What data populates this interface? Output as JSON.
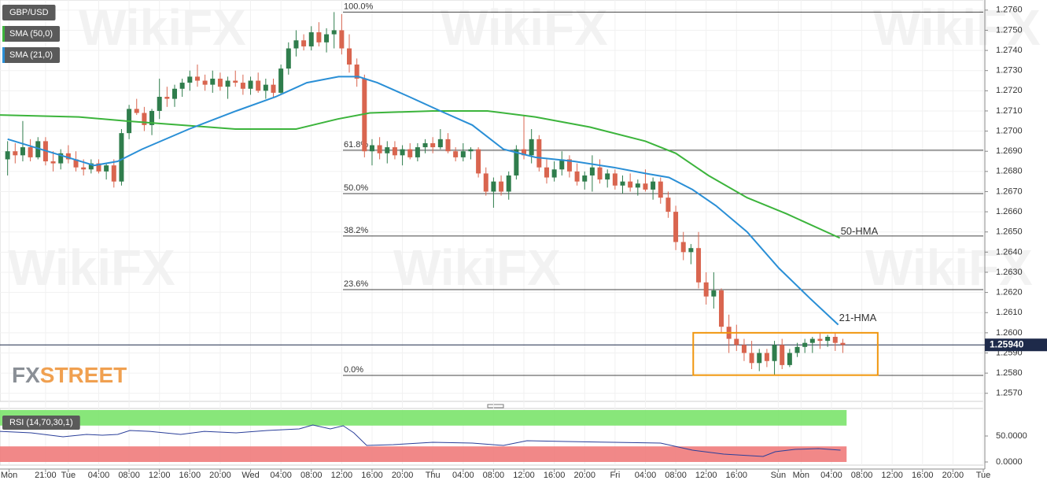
{
  "chart_data": {
    "type": "candlestick",
    "title": "GBP/USD",
    "indicators": [
      {
        "name": "SMA (50,0)",
        "color": "#3cb43c"
      },
      {
        "name": "SMA (21,0)",
        "color": "#2a8fd6"
      }
    ],
    "up_color": "#2f7d4c",
    "down_color": "#d9654f",
    "open": [
      1.2686,
      1.269,
      1.2688,
      1.2692,
      1.2687,
      1.2695,
      1.2685,
      1.2684,
      1.2689,
      1.2686,
      1.2682,
      1.2681,
      1.2684,
      1.268,
      1.2683,
      1.2675,
      1.2699,
      1.2711,
      1.2709,
      1.2703,
      1.271,
      1.2717,
      1.2716,
      1.2721,
      1.2724,
      1.2727,
      1.2725,
      1.2723,
      1.2726,
      1.2722,
      1.2725,
      1.2724,
      1.2721,
      1.2725,
      1.272,
      1.2723,
      1.2719,
      1.2731,
      1.2741,
      1.2745,
      1.2742,
      1.2749,
      1.2744,
      1.2748,
      1.275,
      1.2741,
      1.2733,
      1.2726,
      1.269,
      1.2693,
      1.2689,
      1.2692,
      1.2688,
      1.2691,
      1.2687,
      1.2692,
      1.2694,
      1.2692,
      1.2696,
      1.269,
      1.2687,
      1.269,
      1.2691,
      1.2679,
      1.267,
      1.2675,
      1.267,
      1.2678,
      1.2691,
      1.2688,
      1.2696,
      1.2682,
      1.2677,
      1.2681,
      1.2686,
      1.268,
      1.2675,
      1.2678,
      1.2682,
      1.2676,
      1.2679,
      1.2673,
      1.2675,
      1.2672,
      1.2674,
      1.2671,
      1.2675,
      1.2667,
      1.266,
      1.2645,
      1.264,
      1.2642,
      1.2625,
      1.2618,
      1.2621,
      1.2603,
      1.2597,
      1.2594,
      1.259,
      1.2585,
      1.259,
      1.2586,
      1.2594,
      1.2584,
      1.259,
      1.2593,
      1.2595,
      1.2597,
      1.2596,
      1.2598,
      1.2595
    ],
    "high": [
      1.2695,
      1.2694,
      1.2705,
      1.2696,
      1.2697,
      1.2697,
      1.269,
      1.2691,
      1.2693,
      1.269,
      1.2686,
      1.2686,
      1.2686,
      1.2684,
      1.2686,
      1.2701,
      1.2713,
      1.2716,
      1.2712,
      1.2711,
      1.2726,
      1.2722,
      1.2723,
      1.2726,
      1.273,
      1.2733,
      1.2728,
      1.273,
      1.2729,
      1.2727,
      1.273,
      1.2728,
      1.2727,
      1.2729,
      1.2726,
      1.2726,
      1.2733,
      1.2744,
      1.275,
      1.2748,
      1.2752,
      1.2754,
      1.2751,
      1.2759,
      1.2758,
      1.2748,
      1.2736,
      1.2728,
      1.2696,
      1.2697,
      1.2695,
      1.2695,
      1.2693,
      1.2694,
      1.2694,
      1.2696,
      1.2697,
      1.2701,
      1.2699,
      1.2692,
      1.2694,
      1.2692,
      1.2692,
      1.2682,
      1.2677,
      1.2678,
      1.268,
      1.2693,
      1.2708,
      1.2701,
      1.2698,
      1.2686,
      1.2685,
      1.269,
      1.2688,
      1.2684,
      1.268,
      1.2688,
      1.2686,
      1.2681,
      1.2681,
      1.2678,
      1.2679,
      1.2676,
      1.2681,
      1.2677,
      1.2677,
      1.267,
      1.2663,
      1.265,
      1.2644,
      1.265,
      1.263,
      1.263,
      1.2622,
      1.2609,
      1.2604,
      1.2597,
      1.2596,
      1.2592,
      1.2592,
      1.2596,
      1.2597,
      1.2592,
      1.2595,
      1.2597,
      1.2598,
      1.26,
      1.2599,
      1.26,
      1.2597
    ],
    "low": [
      1.2678,
      1.2684,
      1.2685,
      1.2685,
      1.2686,
      1.2683,
      1.268,
      1.2681,
      1.2684,
      1.268,
      1.2678,
      1.2679,
      1.2679,
      1.2676,
      1.2672,
      1.2673,
      1.2696,
      1.2708,
      1.27,
      1.2698,
      1.2706,
      1.2712,
      1.2712,
      1.2717,
      1.272,
      1.2722,
      1.272,
      1.2719,
      1.272,
      1.2716,
      1.2722,
      1.2718,
      1.2718,
      1.2719,
      1.2716,
      1.2717,
      1.2718,
      1.2728,
      1.2737,
      1.274,
      1.274,
      1.2742,
      1.2739,
      1.2741,
      1.2738,
      1.2729,
      1.2722,
      1.2687,
      1.2683,
      1.2686,
      1.2684,
      1.2686,
      1.2683,
      1.2686,
      1.2685,
      1.2689,
      1.2689,
      1.2691,
      1.2689,
      1.2685,
      1.2685,
      1.2686,
      1.2677,
      1.2668,
      1.2662,
      1.2668,
      1.2666,
      1.2676,
      1.2686,
      1.2684,
      1.268,
      1.2674,
      1.2675,
      1.2678,
      1.2677,
      1.2673,
      1.2671,
      1.267,
      1.2674,
      1.2672,
      1.2671,
      1.2669,
      1.267,
      1.2668,
      1.267,
      1.2666,
      1.2664,
      1.2657,
      1.2641,
      1.2636,
      1.2634,
      1.2622,
      1.2614,
      1.2612,
      1.26,
      1.259,
      1.2591,
      1.2586,
      1.2582,
      1.2581,
      1.2583,
      1.2579,
      1.2582,
      1.2583,
      1.2588,
      1.259,
      1.259,
      1.2592,
      1.2593,
      1.2591,
      1.259
    ],
    "close": [
      1.269,
      1.2688,
      1.2692,
      1.2687,
      1.2695,
      1.2685,
      1.2684,
      1.2689,
      1.2686,
      1.2682,
      1.2681,
      1.2684,
      1.268,
      1.2683,
      1.2675,
      1.2699,
      1.2711,
      1.2709,
      1.2703,
      1.271,
      1.2717,
      1.2716,
      1.2721,
      1.2724,
      1.2727,
      1.2725,
      1.2723,
      1.2726,
      1.2722,
      1.2725,
      1.2724,
      1.2721,
      1.2725,
      1.272,
      1.2723,
      1.2719,
      1.2731,
      1.2741,
      1.2745,
      1.2742,
      1.2749,
      1.2744,
      1.2748,
      1.275,
      1.2741,
      1.2733,
      1.2726,
      1.269,
      1.2693,
      1.2689,
      1.2692,
      1.2688,
      1.2691,
      1.2687,
      1.2692,
      1.2694,
      1.2692,
      1.2696,
      1.269,
      1.2687,
      1.269,
      1.2691,
      1.2679,
      1.267,
      1.2675,
      1.267,
      1.2678,
      1.2691,
      1.2688,
      1.2696,
      1.2682,
      1.2677,
      1.2681,
      1.2686,
      1.268,
      1.2675,
      1.2678,
      1.2682,
      1.2676,
      1.2679,
      1.2673,
      1.2675,
      1.2672,
      1.2674,
      1.2671,
      1.2675,
      1.2667,
      1.266,
      1.2645,
      1.264,
      1.2642,
      1.2625,
      1.2618,
      1.2621,
      1.2603,
      1.2597,
      1.2594,
      1.259,
      1.2585,
      1.259,
      1.2586,
      1.2594,
      1.2584,
      1.259,
      1.2593,
      1.2595,
      1.2597,
      1.2596,
      1.2598,
      1.2595,
      1.2594
    ],
    "series": [
      {
        "name": "50-HMA",
        "color": "#3cb43c",
        "x": [
          -1,
          9.4,
          15.6,
          22.8,
          30,
          38,
          43.5,
          47.7,
          56,
          63.2,
          69.5,
          76.7,
          84,
          88,
          92.3,
          97.4,
          102.6,
          109.6
        ],
        "values": [
          1.2708,
          1.2707,
          1.2705,
          1.2703,
          1.2701,
          1.2701,
          1.2706,
          1.2709,
          1.271,
          1.271,
          1.2707,
          1.2702,
          1.2695,
          1.2689,
          1.2678,
          1.2667,
          1.2659,
          1.2647
        ]
      },
      {
        "name": "21-HMA",
        "color": "#2a8fd6",
        "x": [
          0,
          11.4,
          14.5,
          17.7,
          23.9,
          30.1,
          35.3,
          39.4,
          43.6,
          46.2,
          48.7,
          52.9,
          57,
          61.2,
          65.3,
          69.5,
          74.6,
          79.8,
          84,
          87.1,
          90.2,
          93.3,
          97.4,
          101.6,
          105.7,
          109.4
        ],
        "values": [
          1.2696,
          1.2683,
          1.2685,
          1.2691,
          1.2701,
          1.271,
          1.2717,
          1.2724,
          1.2727,
          1.2727,
          1.2724,
          1.2717,
          1.271,
          1.2703,
          1.2691,
          1.2687,
          1.2685,
          1.2682,
          1.2679,
          1.2677,
          1.2671,
          1.2663,
          1.265,
          1.2632,
          1.2617,
          1.2604
        ]
      }
    ],
    "xlim": [
      -1,
      128.5
    ],
    "xticks": [
      {
        "value": 0.2,
        "label": "Mon"
      },
      {
        "value": 5,
        "label": "21:00"
      },
      {
        "value": 8,
        "label": "Tue"
      },
      {
        "value": 12,
        "label": "04:00"
      },
      {
        "value": 16,
        "label": "08:00"
      },
      {
        "value": 20,
        "label": "12:00"
      },
      {
        "value": 24,
        "label": "16:00"
      },
      {
        "value": 28,
        "label": "20:00"
      },
      {
        "value": 32,
        "label": "Wed"
      },
      {
        "value": 36,
        "label": "04:00"
      },
      {
        "value": 40,
        "label": "08:00"
      },
      {
        "value": 44,
        "label": "12:00"
      },
      {
        "value": 48,
        "label": "16:00"
      },
      {
        "value": 52,
        "label": "20:00"
      },
      {
        "value": 56,
        "label": "Thu"
      },
      {
        "value": 60,
        "label": "04:00"
      },
      {
        "value": 64,
        "label": "08:00"
      },
      {
        "value": 68,
        "label": "12:00"
      },
      {
        "value": 72,
        "label": "16:00"
      },
      {
        "value": 76,
        "label": "20:00"
      },
      {
        "value": 80,
        "label": "Fri"
      },
      {
        "value": 84,
        "label": "04:00"
      },
      {
        "value": 88,
        "label": "08:00"
      },
      {
        "value": 92,
        "label": "12:00"
      },
      {
        "value": 96,
        "label": "16:00"
      },
      {
        "value": 101.5,
        "label": "Sun"
      },
      {
        "value": 104.5,
        "label": "Mon"
      },
      {
        "value": 108.5,
        "label": "04:00"
      },
      {
        "value": 112.5,
        "label": "08:00"
      },
      {
        "value": 116.5,
        "label": "12:00"
      },
      {
        "value": 120.5,
        "label": "16:00"
      },
      {
        "value": 124.5,
        "label": "20:00"
      },
      {
        "value": 128.5,
        "label": "Tue"
      }
    ],
    "ylim": [
      1.2566,
      1.2765
    ],
    "yticks": [
      {
        "value": 1.257,
        "label": "1.2570"
      },
      {
        "value": 1.258,
        "label": "1.2580"
      },
      {
        "value": 1.259,
        "label": "1.2590"
      },
      {
        "value": 1.26,
        "label": "1.2600"
      },
      {
        "value": 1.261,
        "label": "1.2610"
      },
      {
        "value": 1.262,
        "label": "1.2620"
      },
      {
        "value": 1.263,
        "label": "1.2630"
      },
      {
        "value": 1.264,
        "label": "1.2640"
      },
      {
        "value": 1.265,
        "label": "1.2650"
      },
      {
        "value": 1.266,
        "label": "1.2660"
      },
      {
        "value": 1.267,
        "label": "1.2670"
      },
      {
        "value": 1.268,
        "label": "1.2680"
      },
      {
        "value": 1.269,
        "label": "1.2690"
      },
      {
        "value": 1.27,
        "label": "1.2700"
      },
      {
        "value": 1.271,
        "label": "1.2710"
      },
      {
        "value": 1.272,
        "label": "1.2720"
      },
      {
        "value": 1.273,
        "label": "1.2730"
      },
      {
        "value": 1.274,
        "label": "1.2740"
      },
      {
        "value": 1.275,
        "label": "1.2750"
      },
      {
        "value": 1.276,
        "label": "1.2760"
      }
    ],
    "grid": true,
    "fib_levels": [
      {
        "label": "100.0%",
        "value": 1.2759
      },
      {
        "label": "61.8%",
        "value": 1.26905
      },
      {
        "label": "50.0%",
        "value": 1.2669
      },
      {
        "label": "38.2%",
        "value": 1.2648
      },
      {
        "label": "23.6%",
        "value": 1.26214
      },
      {
        "label": "0.0%",
        "value": 1.25789
      }
    ],
    "box": {
      "xlim": [
        90.3,
        114.6
      ],
      "ylim": [
        1.2579,
        1.26
      ],
      "color": "#f0960e"
    },
    "last_price": {
      "value": 1.2594,
      "label": "1.25940"
    },
    "logo": [
      "FX",
      "STREET"
    ],
    "watermark": "WikiFX",
    "rsi": {
      "label": "RSI (14,70,30,1)",
      "color": "#2a3f9a",
      "overbought": 70,
      "oversold": 30,
      "ylim": [
        0,
        100
      ],
      "yticks": [
        {
          "value": 50,
          "label": "50.0000"
        },
        {
          "value": 0,
          "label": "0.0000"
        }
      ],
      "x": [
        -1,
        3.1,
        7.3,
        10.4,
        12.5,
        14.5,
        16.1,
        18.7,
        22.8,
        25.9,
        30.1,
        34.2,
        38.4,
        40.2,
        42.5,
        44.2,
        45.6,
        47.3,
        50.8,
        56,
        61.2,
        65.3,
        68.4,
        73.6,
        79.8,
        86,
        90.2,
        94.3,
        99.5,
        101.1,
        103.7,
        106.8,
        109.7
      ],
      "values": [
        59,
        56,
        48.5,
        53,
        51.5,
        53,
        60.6,
        59,
        53,
        59,
        56,
        60.6,
        63.6,
        71.2,
        63.6,
        69.7,
        56,
        31.8,
        33.3,
        37.9,
        36.4,
        31.8,
        40.9,
        39.4,
        37.9,
        36.4,
        22.7,
        15.2,
        10.6,
        19.7,
        24.2,
        25.8,
        22.7
      ]
    }
  }
}
